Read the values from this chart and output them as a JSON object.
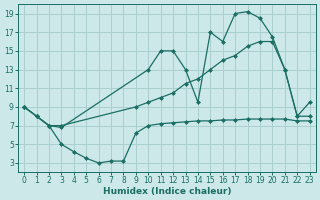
{
  "xlabel": "Humidex (Indice chaleur)",
  "xlim": [
    -0.5,
    23.5
  ],
  "ylim": [
    2,
    20
  ],
  "yticks": [
    3,
    5,
    7,
    9,
    11,
    13,
    15,
    17,
    19
  ],
  "xticks": [
    0,
    1,
    2,
    3,
    4,
    5,
    6,
    7,
    8,
    9,
    10,
    11,
    12,
    13,
    14,
    15,
    16,
    17,
    18,
    19,
    20,
    21,
    22,
    23
  ],
  "bg_color": "#cde8e8",
  "grid_color": "#aacfcf",
  "line_color": "#1a6e64",
  "series1_x": [
    0,
    1,
    2,
    3,
    9,
    10,
    11,
    12,
    13,
    14,
    15,
    16,
    17,
    18,
    19,
    20,
    21,
    22,
    23
  ],
  "series1_y": [
    9,
    8,
    7,
    7,
    9,
    9.5,
    10,
    10.5,
    11.5,
    12,
    13,
    14,
    14.5,
    15.5,
    16,
    16,
    13,
    8,
    8
  ],
  "series2_x": [
    0,
    1,
    2,
    3,
    10,
    11,
    12,
    13,
    14,
    15,
    16,
    17,
    18,
    19,
    20,
    21,
    22,
    23
  ],
  "series2_y": [
    9,
    8,
    7,
    6.8,
    13,
    15,
    15,
    13,
    9.5,
    17,
    16,
    19,
    19.2,
    18.5,
    16.5,
    13,
    8,
    9.5
  ],
  "series3_x": [
    0,
    1,
    2,
    3,
    4,
    5,
    6,
    7,
    8,
    9,
    10,
    11,
    12,
    13,
    14,
    15,
    16,
    17,
    18,
    19,
    20,
    21,
    22,
    23
  ],
  "series3_y": [
    9,
    8,
    7,
    5,
    4.2,
    3.5,
    3,
    3.2,
    3.2,
    6.2,
    7,
    7.2,
    7.3,
    7.4,
    7.5,
    7.5,
    7.6,
    7.6,
    7.7,
    7.7,
    7.7,
    7.7,
    7.5,
    7.5
  ]
}
